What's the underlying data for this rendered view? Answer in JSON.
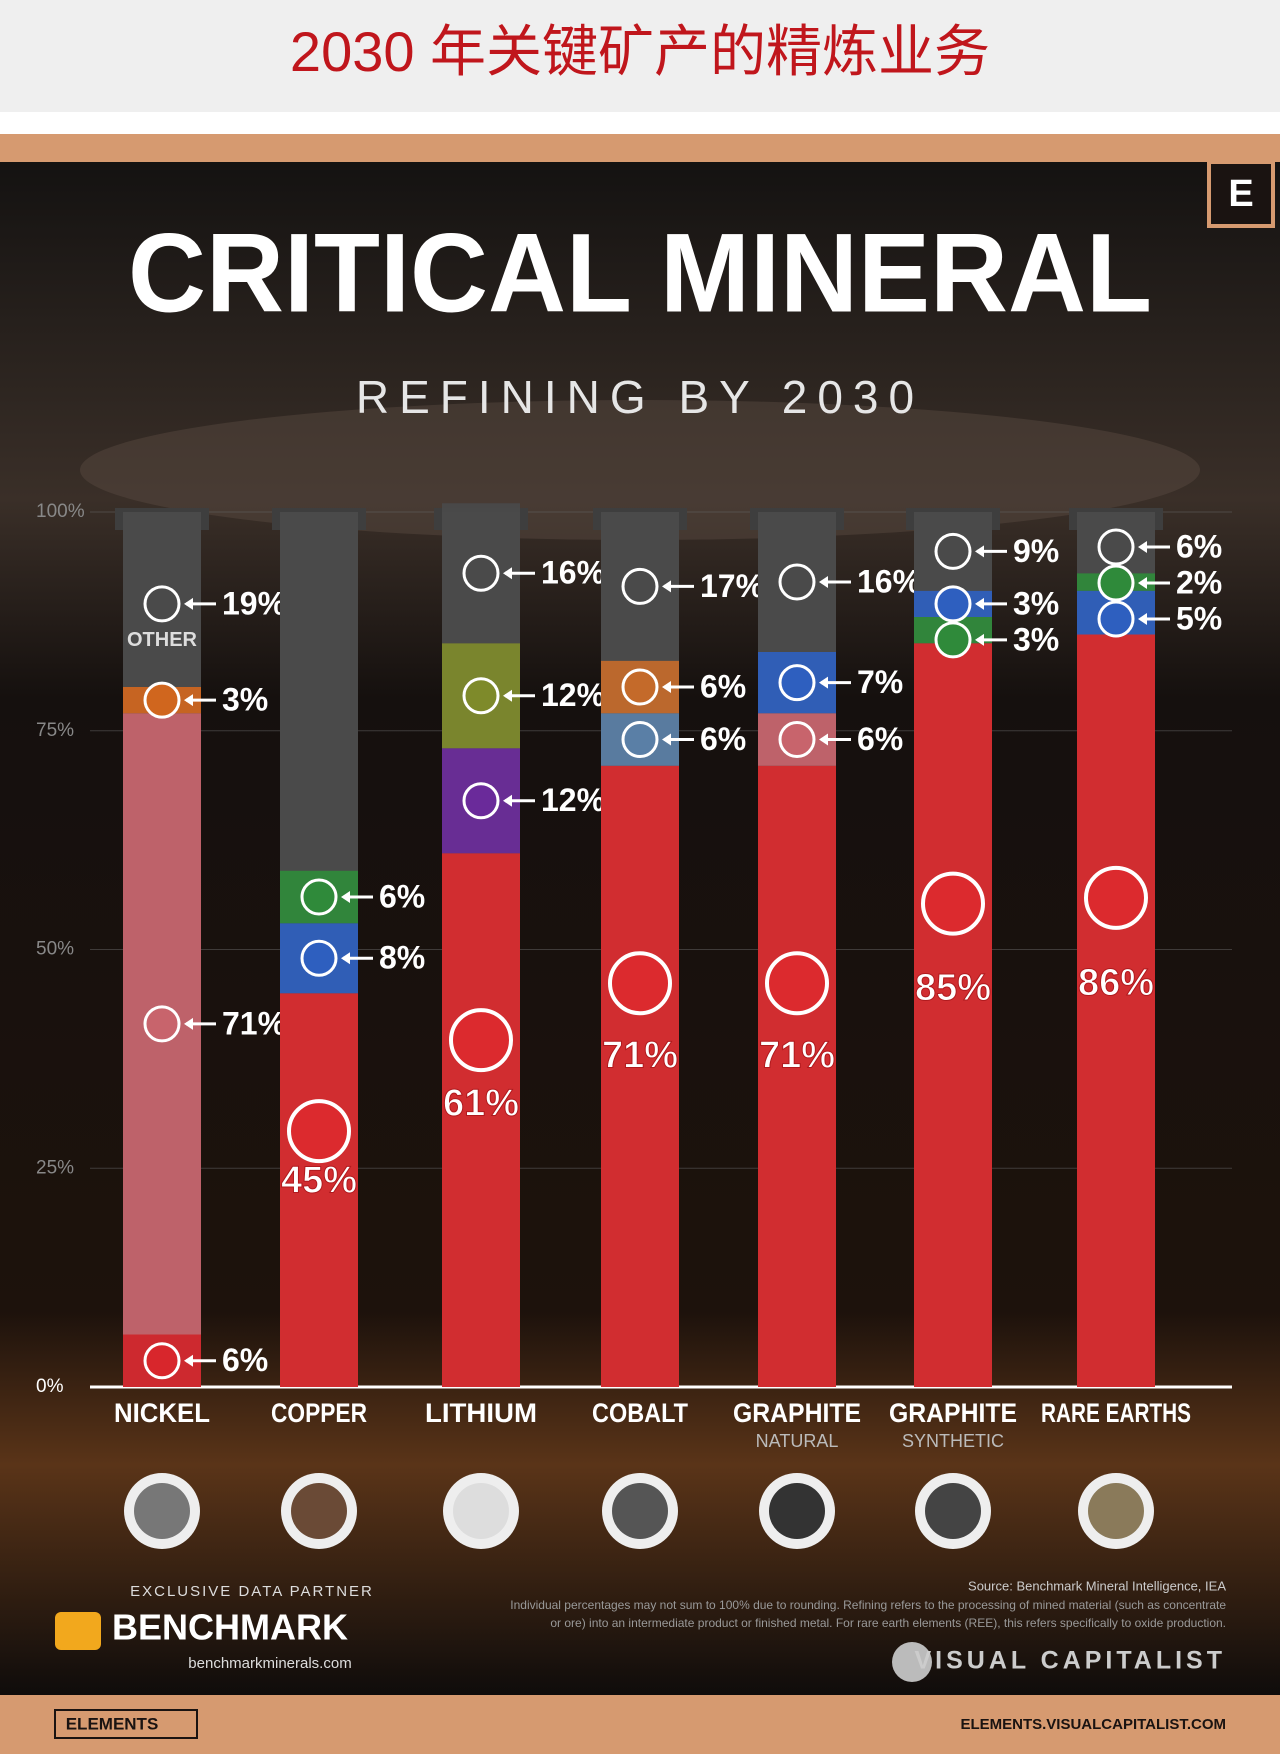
{
  "header": {
    "title": "2030 年关键矿产的精炼业务"
  },
  "chart_data": {
    "type": "stacked_bar",
    "logo": "E",
    "title": "CRITICAL MINERAL",
    "subtitle": "REFINING BY 2030",
    "annotation": "OTHER",
    "ylim": [
      0,
      100
    ],
    "yticks": [
      {
        "value": 0,
        "label": "0%"
      },
      {
        "value": 25,
        "label": "25%"
      },
      {
        "value": 50,
        "label": "50%"
      },
      {
        "value": 75,
        "label": "75%"
      },
      {
        "value": 100,
        "label": "100%"
      }
    ],
    "grid": true,
    "stacks": [
      {
        "category": "NICKEL",
        "values": [
          6,
          71,
          3,
          19
        ],
        "value_labels": [
          "6%",
          "71%",
          "3%",
          "19%"
        ],
        "colors": [
          "#d8262c",
          "#c8646c",
          "#d0661e",
          "#4a4a4a"
        ]
      },
      {
        "category": "COPPER",
        "values": [
          45,
          8,
          6
        ],
        "value_labels": [
          "45%",
          "8%",
          "6%"
        ],
        "colors": [
          "#dc2a2e",
          "#2e5fbf",
          "#2f8a3a"
        ]
      },
      {
        "category": "LITHIUM",
        "values": [
          61,
          12,
          12,
          16
        ],
        "value_labels": [
          "61%",
          "12%",
          "12%",
          "16%"
        ],
        "colors": [
          "#dc2a2e",
          "#6a2a9a",
          "#7e8a2a",
          "#4a4a4a"
        ]
      },
      {
        "category": "COBALT",
        "values": [
          71,
          6,
          6,
          17
        ],
        "value_labels": [
          "71%",
          "6%",
          "6%",
          "17%"
        ],
        "colors": [
          "#dc2a2e",
          "#5a7fa6",
          "#c46a2a",
          "#4a4a4a"
        ]
      },
      {
        "category": "GRAPHITE",
        "subtitle": "NATURAL",
        "values": [
          71,
          6,
          7,
          16
        ],
        "value_labels": [
          "71%",
          "6%",
          "7%",
          "16%"
        ],
        "colors": [
          "#dc2a2e",
          "#c8646c",
          "#2e5fbf",
          "#4a4a4a"
        ]
      },
      {
        "category": "GRAPHITE",
        "subtitle": "SYNTHETIC",
        "values": [
          85,
          3,
          3,
          9
        ],
        "value_labels": [
          "85%",
          "3%",
          "3%",
          "9%"
        ],
        "colors": [
          "#dc2a2e",
          "#2f8a3a",
          "#2e5fbf",
          "#4a4a4a"
        ]
      },
      {
        "category": "RARE EARTHS",
        "values": [
          86,
          5,
          2,
          6
        ],
        "value_labels": [
          "86%",
          "5%",
          "2%",
          "6%"
        ],
        "colors": [
          "#dc2a2e",
          "#2e5fbf",
          "#2f8a3a",
          "#4a4a4a"
        ]
      }
    ]
  },
  "footer": {
    "partner": "EXCLUSIVE DATA PARTNER",
    "partner_name": "BENCHMARK",
    "partner_url": "benchmarkminerals.com",
    "source": "Source: Benchmark Mineral Intelligence, IEA",
    "note_1": "Individual percentages may not sum to 100% due to rounding. Refining refers to the processing of mined material (such as concentrate",
    "note_2": "or ore) into an intermediate product or finished metal. For rare earth elements (REE), this refers specifically to oxide production.",
    "brand": "VISUAL CAPITALIST",
    "series_name": "ELEMENTS",
    "site": "ELEMENTS.VISUALCAPITALIST.COM"
  }
}
